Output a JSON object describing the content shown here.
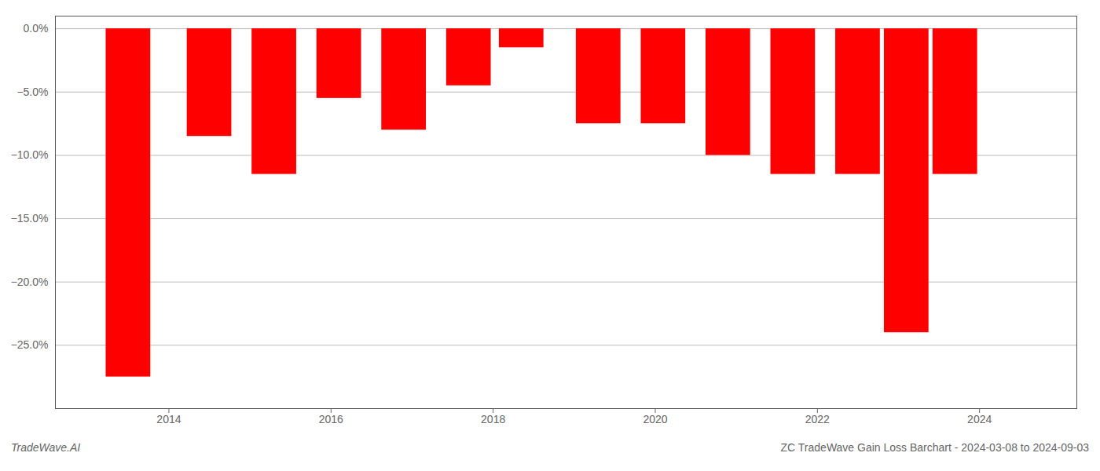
{
  "chart_data": {
    "type": "bar",
    "x": [
      2013.5,
      2014.5,
      2015.3,
      2016.1,
      2016.9,
      2017.7,
      2018.35,
      2019.3,
      2020.1,
      2020.9,
      2021.7,
      2022.5,
      2023.1,
      2023.7
    ],
    "values": [
      -27.5,
      -8.5,
      -11.5,
      -5.5,
      -8.0,
      -4.5,
      -1.5,
      -7.5,
      -7.5,
      -10.0,
      -11.5,
      -11.5,
      -24.0,
      -11.5
    ],
    "color": "#ff0000",
    "xlim": [
      2012.6,
      2025.2
    ],
    "xticks": [
      2014,
      2016,
      2018,
      2020,
      2022,
      2024
    ],
    "ylim": [
      -30,
      1.0
    ],
    "yticks": [
      {
        "value": 0.0,
        "label": "0.0%"
      },
      {
        "value": -5.0,
        "label": "−5.0%"
      },
      {
        "value": -10.0,
        "label": "−10.0%"
      },
      {
        "value": -15.0,
        "label": "−15.0%"
      },
      {
        "value": -20.0,
        "label": "−20.0%"
      },
      {
        "value": -25.0,
        "label": "−25.0%"
      }
    ],
    "grid": true,
    "annotations": [
      "TradeWave.AI",
      "ZC TradeWave Gain Loss Barchart - 2024-03-08 to 2024-09-03"
    ]
  }
}
